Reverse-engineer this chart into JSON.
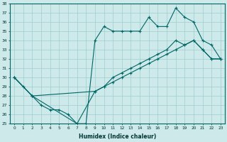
{
  "xlabel": "Humidex (Indice chaleur)",
  "xlim": [
    -0.5,
    23.5
  ],
  "ylim": [
    25,
    38
  ],
  "xticks": [
    0,
    1,
    2,
    3,
    4,
    5,
    6,
    7,
    8,
    9,
    10,
    11,
    12,
    13,
    14,
    15,
    16,
    17,
    18,
    19,
    20,
    21,
    22,
    23
  ],
  "yticks": [
    25,
    26,
    27,
    28,
    29,
    30,
    31,
    32,
    33,
    34,
    35,
    36,
    37,
    38
  ],
  "bg_color": "#cde9e9",
  "grid_color": "#9ecece",
  "line_color": "#006666",
  "line1_x": [
    0,
    1,
    2,
    3,
    4,
    5,
    6,
    7,
    8,
    9,
    10,
    11,
    12,
    13,
    14,
    15,
    16,
    17,
    18,
    19,
    20,
    21,
    22,
    23
  ],
  "line1_y": [
    30,
    29,
    28,
    27,
    26.5,
    26.5,
    26,
    25,
    25,
    34,
    35.5,
    35,
    35,
    35,
    35,
    36.5,
    35.5,
    35.5,
    37.5,
    36.5,
    36,
    34,
    33.5,
    32
  ],
  "line2_x": [
    0,
    2,
    7,
    9,
    10,
    11,
    12,
    13,
    14,
    15,
    16,
    17,
    18,
    19,
    20,
    21,
    22,
    23
  ],
  "line2_y": [
    30,
    28,
    25,
    28.5,
    29,
    29.5,
    30,
    30.5,
    31,
    31.5,
    32,
    32.5,
    33,
    33.5,
    34,
    33,
    32,
    32
  ],
  "line3_x": [
    0,
    2,
    9,
    10,
    11,
    12,
    13,
    14,
    15,
    16,
    17,
    18,
    19,
    20,
    21,
    22,
    23
  ],
  "line3_y": [
    30,
    28,
    28.5,
    29,
    30,
    30.5,
    31,
    31.5,
    32,
    32.5,
    33,
    34,
    33.5,
    34,
    33,
    32,
    32
  ]
}
